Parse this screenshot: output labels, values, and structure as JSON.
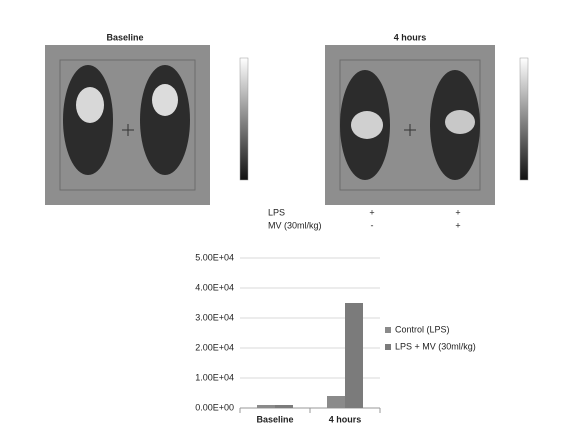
{
  "panels": {
    "left_title": "Baseline",
    "right_title": "4 hours"
  },
  "treatments": {
    "rows": [
      {
        "label": "LPS",
        "left": "+",
        "right": "+"
      },
      {
        "label": "MV (30ml/kg)",
        "left": "-",
        "right": "+"
      }
    ]
  },
  "chart_data": {
    "type": "bar",
    "categories": [
      "Baseline",
      "4 hours"
    ],
    "series": [
      {
        "name": "Control (LPS)",
        "color": "#8a8a8a",
        "values": [
          1000,
          4000
        ]
      },
      {
        "name": "LPS + MV (30ml/kg)",
        "color": "#7b7b7b",
        "values": [
          1000,
          35000
        ]
      }
    ],
    "ylim": [
      0,
      50000
    ],
    "yticks": [
      {
        "value": 0,
        "label": "0.00E+00"
      },
      {
        "value": 10000,
        "label": "1.00E+04"
      },
      {
        "value": 20000,
        "label": "2.00E+04"
      },
      {
        "value": 30000,
        "label": "3.00E+04"
      },
      {
        "value": 40000,
        "label": "4.00E+04"
      },
      {
        "value": 50000,
        "label": "5.00E+04"
      }
    ],
    "grid": true
  }
}
